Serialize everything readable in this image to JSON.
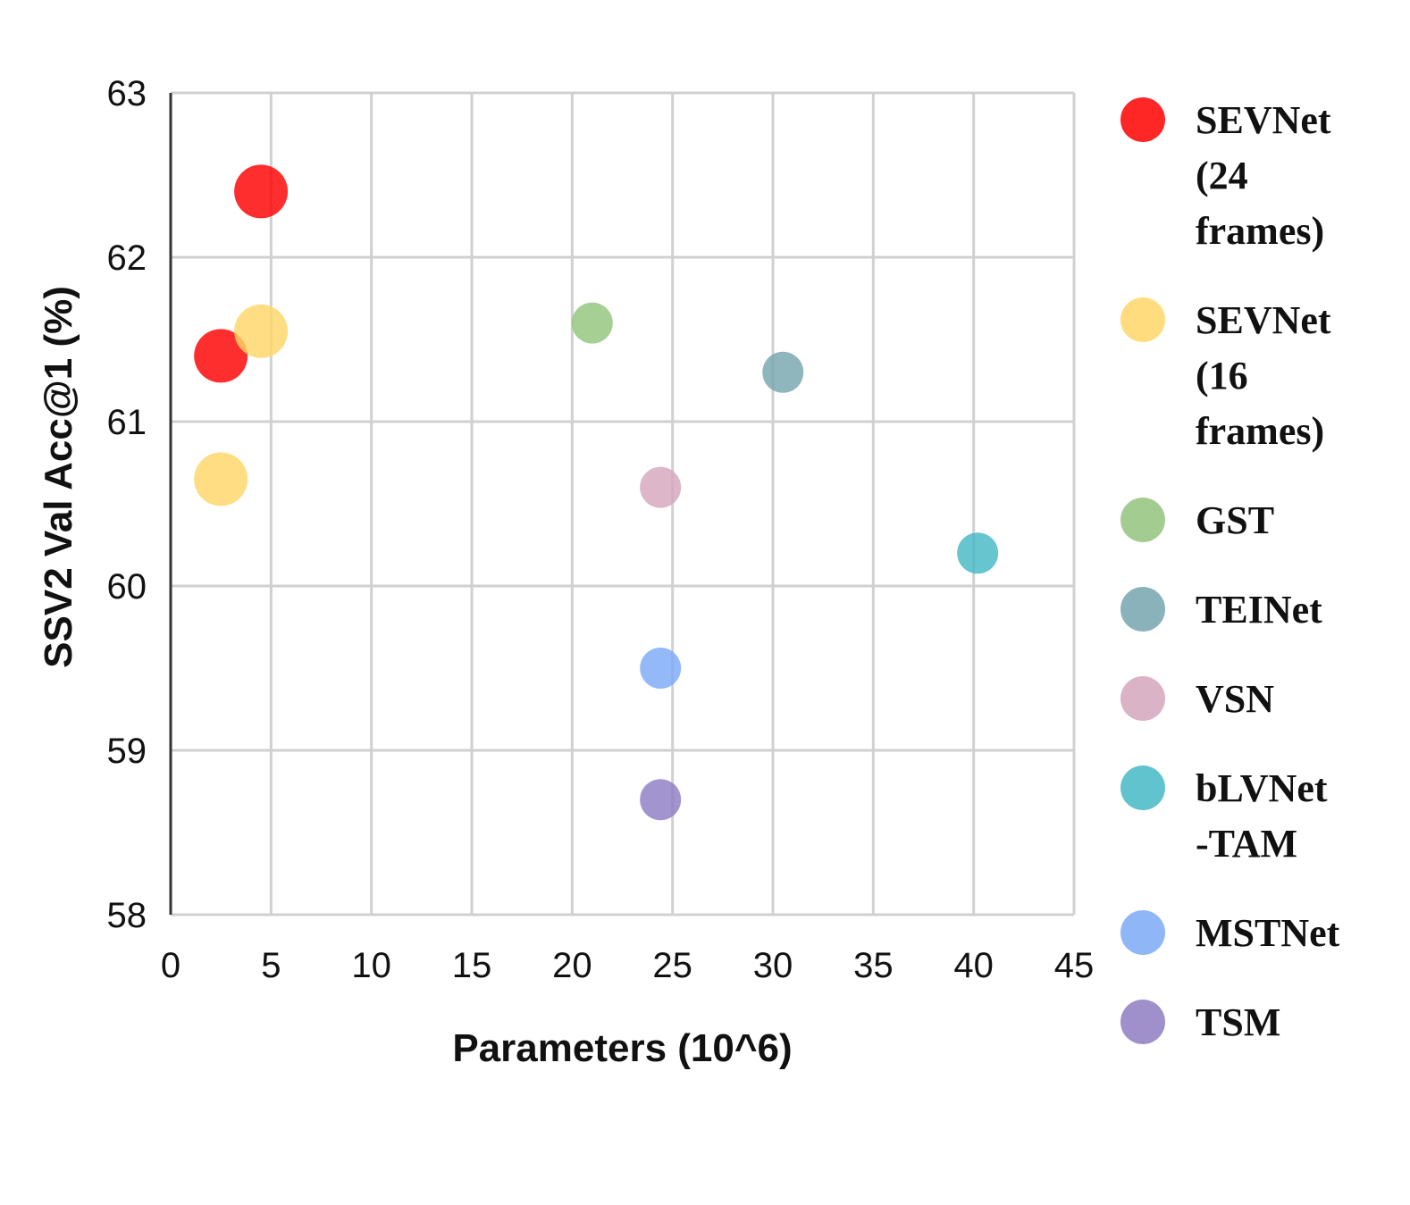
{
  "chart_data": {
    "type": "scatter",
    "title": "",
    "xlabel": "Parameters (10^6)",
    "ylabel": "SSV2 Val Acc@1 (%)",
    "xlim": [
      0,
      45
    ],
    "ylim": [
      58,
      63
    ],
    "xticks": [
      "0",
      "5",
      "10",
      "15",
      "20",
      "25",
      "30",
      "35",
      "40",
      "45"
    ],
    "yticks": [
      "58",
      "59",
      "60",
      "61",
      "62",
      "63"
    ],
    "grid": true,
    "legend_position": "right",
    "series": [
      {
        "name": "SEVNet (24 frames)",
        "legend_lines": [
          "SEVNet",
          "(24",
          "frames)"
        ],
        "color": "#ff0000",
        "size": "large",
        "points": [
          {
            "x": 4.5,
            "y": 62.4
          },
          {
            "x": 2.5,
            "y": 61.4
          }
        ]
      },
      {
        "name": "SEVNet (16 frames)",
        "legend_lines": [
          "SEVNet",
          "(16",
          "frames)"
        ],
        "color": "#ffd666",
        "size": "large",
        "points": [
          {
            "x": 4.5,
            "y": 61.55
          },
          {
            "x": 2.5,
            "y": 60.65
          }
        ]
      },
      {
        "name": "GST",
        "legend_lines": [
          "GST"
        ],
        "color": "#93c47d",
        "size": "small",
        "points": [
          {
            "x": 21,
            "y": 61.6
          }
        ]
      },
      {
        "name": "TEINet",
        "legend_lines": [
          "TEINet"
        ],
        "color": "#76a5af",
        "size": "small",
        "points": [
          {
            "x": 30.5,
            "y": 61.3
          }
        ]
      },
      {
        "name": "VSN",
        "legend_lines": [
          "VSN"
        ],
        "color": "#d5a6bd",
        "size": "small",
        "points": [
          {
            "x": 24.4,
            "y": 60.6
          }
        ]
      },
      {
        "name": "bLVNet-TAM",
        "legend_lines": [
          "bLVNet",
          "-TAM"
        ],
        "color": "#45b8c4",
        "size": "small",
        "points": [
          {
            "x": 40.2,
            "y": 60.2
          }
        ]
      },
      {
        "name": "MSTNet",
        "legend_lines": [
          "MSTNet"
        ],
        "color": "#7baaf7",
        "size": "small",
        "points": [
          {
            "x": 24.4,
            "y": 59.5
          }
        ]
      },
      {
        "name": "TSM",
        "legend_lines": [
          "TSM"
        ],
        "color": "#8e7cc3",
        "size": "small",
        "points": [
          {
            "x": 24.4,
            "y": 58.7
          }
        ]
      }
    ]
  }
}
